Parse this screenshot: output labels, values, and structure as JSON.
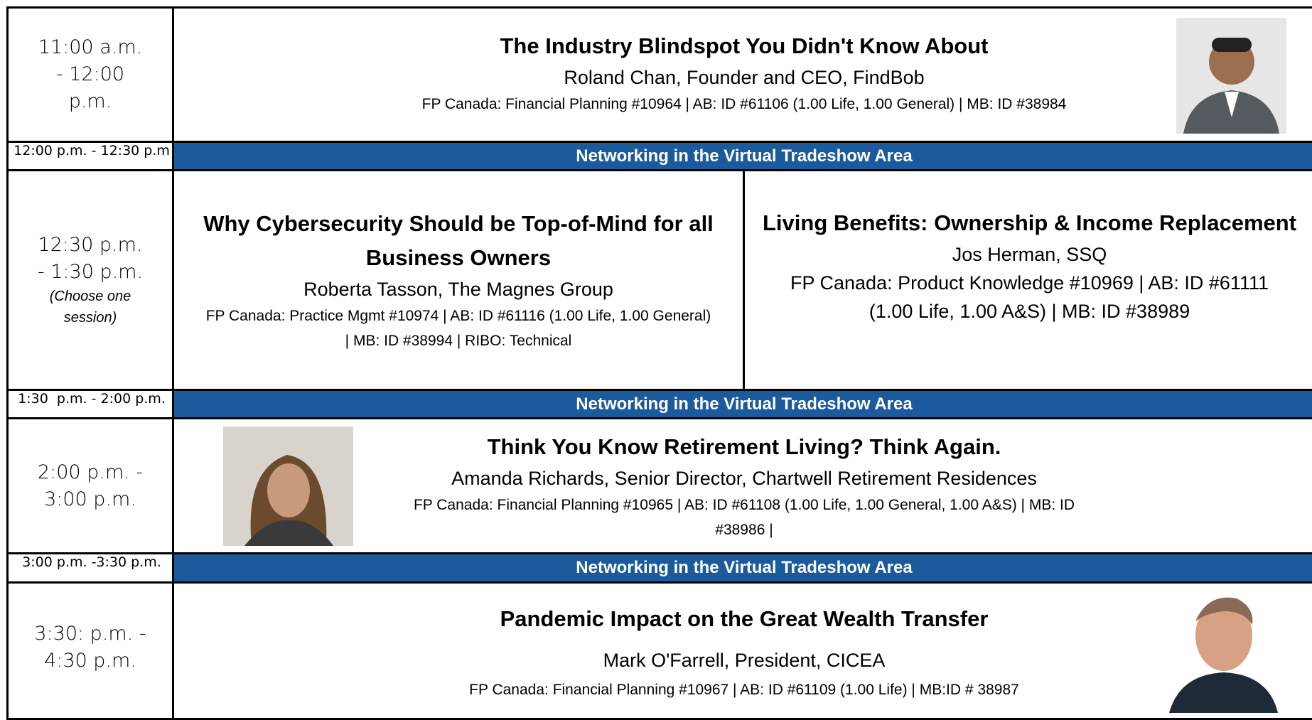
{
  "schedule": {
    "rows": [
      {
        "time": "11:00 a.m. - 12:00 p.m.",
        "title": "The Industry Blindspot You Didn't Know About",
        "speaker": "Roland Chan, Founder and CEO, FindBob",
        "credits": "FP Canada: Financial Planning #10964 | AB: ID #61106 (1.00 Life, 1.00 General) | MB: ID #38984"
      },
      {
        "time": "12:00 p.m. - 12:30 p.m",
        "band": "Networking in the Virtual Tradeshow Area"
      },
      {
        "time": "12:30 p.m. - 1:30 p.m.",
        "note": "(Choose one session)",
        "sessions": [
          {
            "title": "Why Cybersecurity Should be Top-of-Mind for all Business Owners",
            "speaker": "Roberta Tasson, The Magnes Group",
            "credits": "FP Canada: Practice Mgmt #10974 | AB: ID #61116 (1.00 Life, 1.00 General) | MB: ID #38994 | RIBO: Technical"
          },
          {
            "title": "Living Benefits: Ownership & Income Replacement",
            "speaker": "Jos Herman, SSQ",
            "credits": "FP Canada: Product Knowledge #10969 | AB: ID #61111 (1.00 Life, 1.00 A&S) | MB: ID #38989"
          }
        ]
      },
      {
        "time": "1:30  p.m. - 2:00 p.m.",
        "band": "Networking in the Virtual Tradeshow Area"
      },
      {
        "time": "2:00 p.m. - 3:00 p.m.",
        "title": "Think You Know Retirement Living? Think Again.",
        "speaker": "Amanda Richards, Senior Director, Chartwell Retirement Residences",
        "credits": "FP Canada: Financial Planning #10965 | AB: ID #61108 (1.00 Life, 1.00 General, 1.00 A&S) | MB: ID #38986 |"
      },
      {
        "time": "3:00 p.m. -3:30 p.m.",
        "band": "Networking in the Virtual Tradeshow Area"
      },
      {
        "time": "3:30: p.m. - 4:30 p.m.",
        "title": "Pandemic Impact on the Great Wealth Transfer",
        "speaker": "Mark O'Farrell, President, CICEA",
        "credits": "FP Canada: Financial Planning #10967 | AB: ID #61109 (1.00 Life)  | MB:ID # 38987"
      }
    ]
  }
}
